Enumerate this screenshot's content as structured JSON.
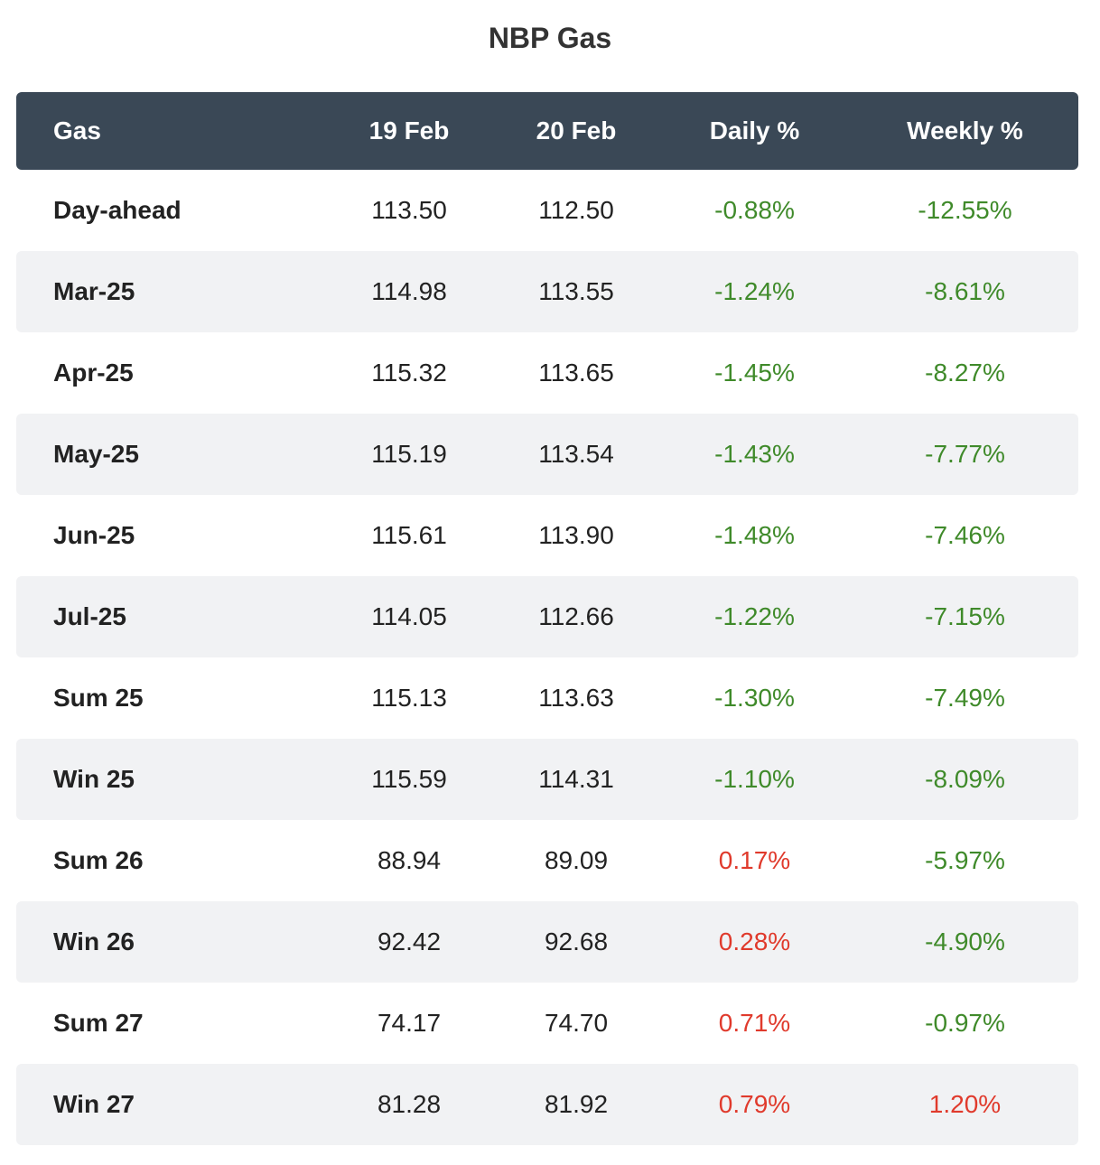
{
  "title": "NBP Gas",
  "colors": {
    "header_bg": "#3a4856",
    "stripe_bg": "#f1f2f4",
    "negative": "#3f8a2a",
    "positive": "#e03a2c"
  },
  "table": {
    "columns": [
      "Gas",
      "19 Feb",
      "20 Feb",
      "Daily %",
      "Weekly %"
    ],
    "rows": [
      {
        "name": "Day-ahead",
        "feb19": "113.50",
        "feb20": "112.50",
        "daily": "-0.88%",
        "weekly": "-12.55%"
      },
      {
        "name": "Mar-25",
        "feb19": "114.98",
        "feb20": "113.55",
        "daily": "-1.24%",
        "weekly": "-8.61%"
      },
      {
        "name": "Apr-25",
        "feb19": "115.32",
        "feb20": "113.65",
        "daily": "-1.45%",
        "weekly": "-8.27%"
      },
      {
        "name": "May-25",
        "feb19": "115.19",
        "feb20": "113.54",
        "daily": "-1.43%",
        "weekly": "-7.77%"
      },
      {
        "name": "Jun-25",
        "feb19": "115.61",
        "feb20": "113.90",
        "daily": "-1.48%",
        "weekly": "-7.46%"
      },
      {
        "name": "Jul-25",
        "feb19": "114.05",
        "feb20": "112.66",
        "daily": "-1.22%",
        "weekly": "-7.15%"
      },
      {
        "name": "Sum 25",
        "feb19": "115.13",
        "feb20": "113.63",
        "daily": "-1.30%",
        "weekly": "-7.49%"
      },
      {
        "name": "Win 25",
        "feb19": "115.59",
        "feb20": "114.31",
        "daily": "-1.10%",
        "weekly": "-8.09%"
      },
      {
        "name": "Sum 26",
        "feb19": "88.94",
        "feb20": "89.09",
        "daily": "0.17%",
        "weekly": "-5.97%"
      },
      {
        "name": "Win 26",
        "feb19": "92.42",
        "feb20": "92.68",
        "daily": "0.28%",
        "weekly": "-4.90%"
      },
      {
        "name": "Sum 27",
        "feb19": "74.17",
        "feb20": "74.70",
        "daily": "0.71%",
        "weekly": "-0.97%"
      },
      {
        "name": "Win 27",
        "feb19": "81.28",
        "feb20": "81.92",
        "daily": "0.79%",
        "weekly": "1.20%"
      }
    ]
  }
}
